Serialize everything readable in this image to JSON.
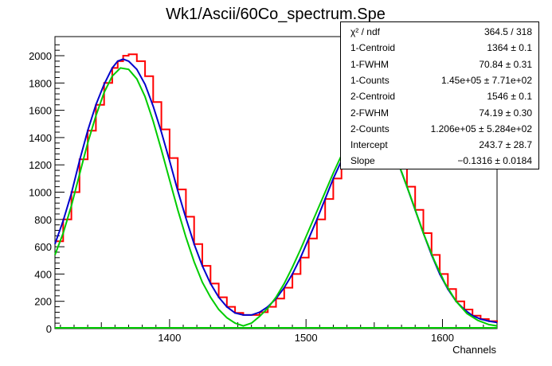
{
  "chart_data": {
    "type": "line",
    "title": "Wk1/Ascii/60Co_spectrum.Spe",
    "xlabel": "Channels",
    "ylabel": "",
    "xlim": [
      1316,
      1640
    ],
    "ylim": [
      0,
      2140
    ],
    "x_major_ticks": [
      1400,
      1500,
      1600
    ],
    "y_major_ticks": [
      0,
      200,
      400,
      600,
      800,
      1000,
      1200,
      1400,
      1600,
      1800,
      2000
    ],
    "grid": false,
    "series": [
      {
        "role": "histogram",
        "color": "#ff0000",
        "x": [
          1316,
          1322,
          1328,
          1334,
          1340,
          1346,
          1352,
          1358,
          1362,
          1366,
          1370,
          1376,
          1382,
          1388,
          1394,
          1400,
          1406,
          1412,
          1418,
          1424,
          1430,
          1436,
          1442,
          1448,
          1454,
          1460,
          1466,
          1472,
          1478,
          1484,
          1490,
          1496,
          1502,
          1508,
          1514,
          1520,
          1526,
          1532,
          1538,
          1544,
          1550,
          1556,
          1562,
          1568,
          1574,
          1580,
          1586,
          1592,
          1598,
          1604,
          1610,
          1616,
          1622,
          1628,
          1634,
          1640
        ],
        "y": [
          640,
          800,
          1000,
          1240,
          1450,
          1640,
          1800,
          1910,
          1960,
          2000,
          2010,
          1960,
          1850,
          1660,
          1460,
          1250,
          1020,
          820,
          620,
          460,
          330,
          230,
          160,
          115,
          100,
          100,
          120,
          160,
          220,
          300,
          400,
          520,
          660,
          800,
          950,
          1100,
          1230,
          1340,
          1410,
          1450,
          1460,
          1420,
          1330,
          1200,
          1040,
          870,
          700,
          540,
          400,
          290,
          200,
          140,
          95,
          70,
          55,
          45
        ]
      },
      {
        "role": "total fit",
        "color": "#0000cc",
        "x": [
          1316,
          1322,
          1328,
          1334,
          1340,
          1346,
          1352,
          1358,
          1362,
          1366,
          1370,
          1376,
          1382,
          1388,
          1394,
          1400,
          1406,
          1412,
          1418,
          1424,
          1430,
          1436,
          1442,
          1448,
          1454,
          1460,
          1466,
          1472,
          1478,
          1484,
          1490,
          1496,
          1502,
          1508,
          1514,
          1520,
          1526,
          1532,
          1538,
          1544,
          1550,
          1556,
          1562,
          1568,
          1574,
          1580,
          1586,
          1592,
          1598,
          1604,
          1610,
          1616,
          1622,
          1628,
          1634,
          1640
        ],
        "y": [
          620,
          790,
          990,
          1230,
          1450,
          1640,
          1790,
          1910,
          1960,
          1975,
          1960,
          1900,
          1790,
          1630,
          1440,
          1230,
          1010,
          810,
          620,
          460,
          330,
          230,
          160,
          115,
          100,
          100,
          120,
          160,
          220,
          300,
          400,
          520,
          660,
          800,
          950,
          1100,
          1230,
          1340,
          1410,
          1450,
          1455,
          1420,
          1330,
          1200,
          1040,
          870,
          700,
          540,
          400,
          290,
          200,
          140,
          95,
          70,
          55,
          45
        ]
      },
      {
        "role": "peak components",
        "color": "#00cc00",
        "x": [
          1316,
          1322,
          1328,
          1334,
          1340,
          1346,
          1352,
          1358,
          1364,
          1370,
          1376,
          1382,
          1388,
          1394,
          1400,
          1406,
          1412,
          1418,
          1424,
          1430,
          1436,
          1442,
          1448,
          1454,
          1460,
          1466,
          1472,
          1478,
          1484,
          1490,
          1496,
          1502,
          1508,
          1514,
          1520,
          1526,
          1532,
          1538,
          1546,
          1554,
          1562,
          1570,
          1578,
          1586,
          1594,
          1602,
          1610,
          1618,
          1626,
          1634,
          1640
        ],
        "y": [
          540,
          700,
          900,
          1130,
          1360,
          1560,
          1730,
          1850,
          1910,
          1900,
          1830,
          1700,
          1520,
          1310,
          1090,
          870,
          670,
          490,
          340,
          230,
          140,
          80,
          40,
          20,
          40,
          90,
          150,
          230,
          330,
          450,
          580,
          720,
          860,
          1000,
          1140,
          1270,
          1380,
          1460,
          1520,
          1470,
          1340,
          1150,
          930,
          700,
          500,
          330,
          200,
          110,
          60,
          30,
          20
        ]
      }
    ],
    "stats_box": [
      {
        "label": "χ² / ndf",
        "value": "364.5 / 318"
      },
      {
        "label": "1-Centroid",
        "value": "1364 ± 0.1"
      },
      {
        "label": "1-FWHM",
        "value": "70.84 ± 0.31"
      },
      {
        "label": "1-Counts",
        "value": "1.45e+05 ± 7.71e+02"
      },
      {
        "label": "2-Centroid",
        "value": "1546 ± 0.1"
      },
      {
        "label": "2-FWHM",
        "value": "74.19 ± 0.30"
      },
      {
        "label": "2-Counts",
        "value": "1.206e+05 ± 5.284e+02"
      },
      {
        "label": "Intercept",
        "value": "243.7 ± 28.7"
      },
      {
        "label": "Slope",
        "value": "−0.1316 ± 0.0184"
      }
    ]
  }
}
